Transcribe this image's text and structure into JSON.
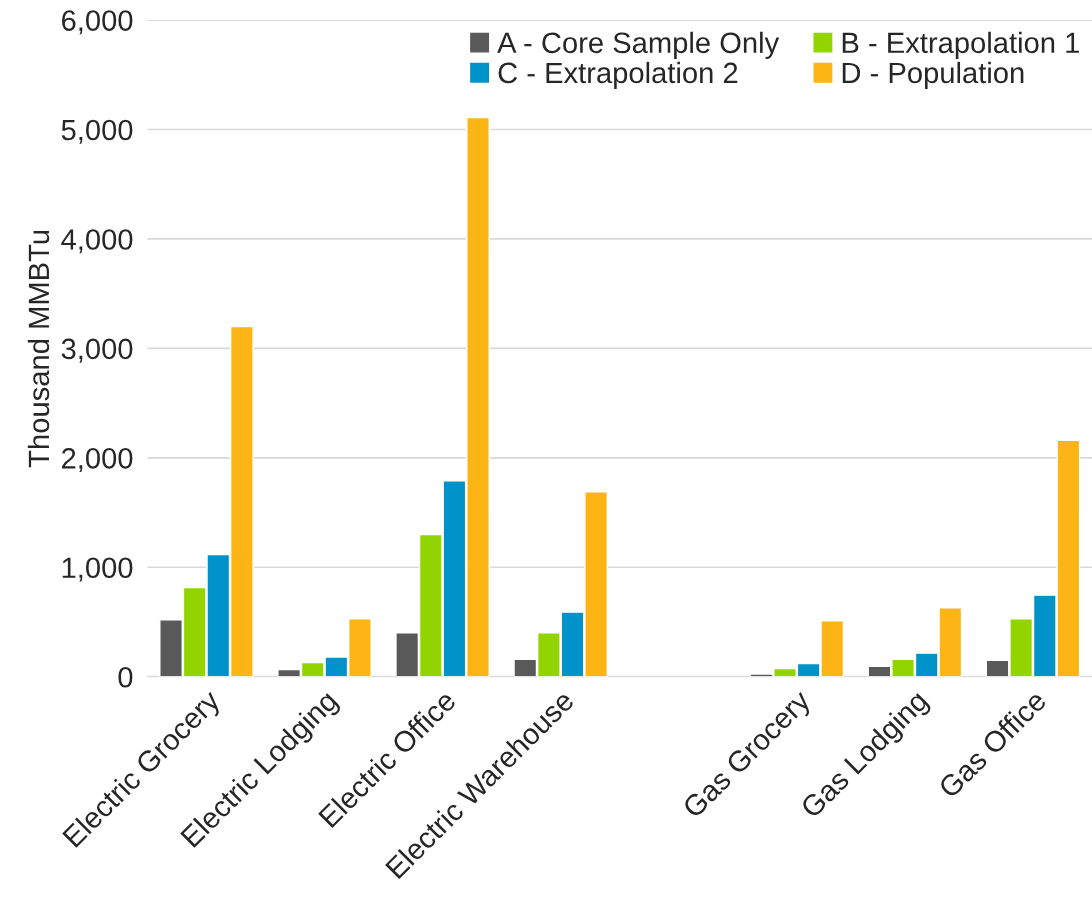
{
  "chart_data": {
    "type": "bar",
    "ylabel": "Thousand MMBTu",
    "categories": [
      "Electric Grocery",
      "Electric Lodging",
      "Electric Office",
      "Electric Warehouse",
      null,
      "Gas Grocery",
      "Gas Lodging",
      "Gas Office"
    ],
    "series": [
      {
        "name": "A - Core Sample Only",
        "color": "#595959",
        "values": [
          520,
          65,
          400,
          160,
          null,
          25,
          95,
          150
        ]
      },
      {
        "name": "B - Extrapolation 1",
        "color": "#92d400",
        "values": [
          815,
          130,
          1300,
          400,
          null,
          75,
          160,
          530
        ]
      },
      {
        "name": "C - Extrapolation 2",
        "color": "#0093c9",
        "values": [
          1115,
          180,
          1790,
          590,
          null,
          120,
          215,
          745
        ]
      },
      {
        "name": "D - Population",
        "color": "#fdb515",
        "values": [
          3200,
          530,
          5110,
          1690,
          null,
          510,
          630,
          2160
        ]
      }
    ],
    "ylim": [
      0,
      6000
    ],
    "yticks": [
      {
        "value": 0,
        "label": "0"
      },
      {
        "value": 1000,
        "label": "1,000"
      },
      {
        "value": 2000,
        "label": "2,000"
      },
      {
        "value": 3000,
        "label": "3,000"
      },
      {
        "value": 4000,
        "label": "4,000"
      },
      {
        "value": 5000,
        "label": "5,000"
      },
      {
        "value": 6000,
        "label": "6,000"
      }
    ],
    "grid": "y",
    "legend": "top right"
  }
}
